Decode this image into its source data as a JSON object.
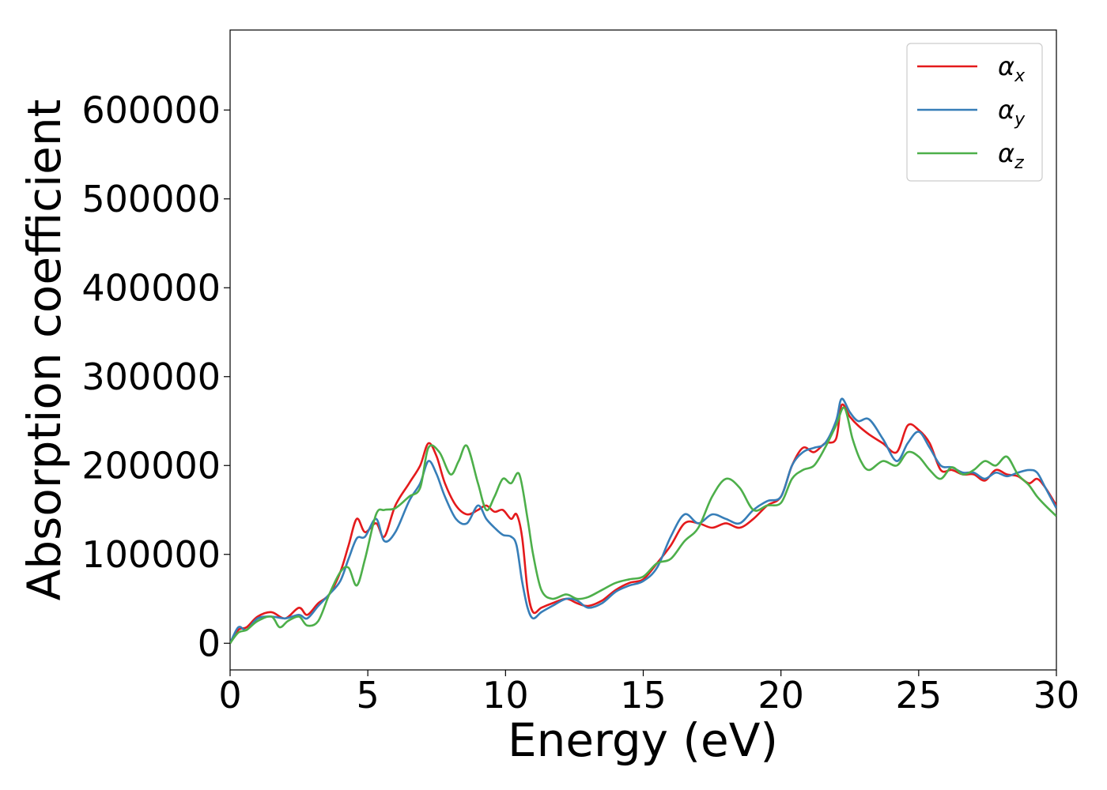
{
  "chart_data": {
    "type": "line",
    "xlabel": "Energy (eV)",
    "ylabel": "Absorption coefficient",
    "xlim": [
      0,
      30
    ],
    "ylim": [
      -30000,
      690000
    ],
    "xticks": [
      0,
      5,
      10,
      15,
      20,
      25,
      30
    ],
    "xtick_labels": [
      "0",
      "5",
      "10",
      "15",
      "20",
      "25",
      "30"
    ],
    "yticks": [
      0,
      100000,
      200000,
      300000,
      400000,
      500000,
      600000
    ],
    "ytick_labels": [
      "0",
      "100000",
      "200000",
      "300000",
      "400000",
      "500000",
      "600000"
    ],
    "grid": false,
    "legend_position": "upper-right",
    "series": [
      {
        "name": "αx",
        "legend_base": "α",
        "legend_sub": "x",
        "color": "#e41a1c",
        "x": [
          0,
          0.3,
          0.6,
          1.0,
          1.5,
          2.0,
          2.5,
          2.8,
          3.2,
          3.6,
          4.0,
          4.3,
          4.6,
          4.9,
          5.3,
          5.6,
          6.0,
          6.5,
          6.9,
          7.2,
          7.5,
          7.8,
          8.2,
          8.6,
          9.0,
          9.3,
          9.6,
          9.9,
          10.2,
          10.4,
          10.6,
          10.8,
          11.0,
          11.3,
          11.7,
          12.2,
          12.6,
          13.0,
          13.5,
          14.0,
          14.5,
          15.0,
          15.5,
          16.0,
          16.5,
          17.0,
          17.5,
          18.0,
          18.5,
          19.0,
          19.5,
          20.0,
          20.4,
          20.8,
          21.2,
          21.6,
          22.0,
          22.2,
          22.5,
          22.8,
          23.2,
          23.7,
          24.2,
          24.6,
          25.0,
          25.4,
          25.8,
          26.2,
          26.6,
          27.0,
          27.4,
          27.8,
          28.2,
          28.6,
          29.0,
          29.3,
          29.6,
          30.0
        ],
        "y": [
          0,
          15000,
          18000,
          30000,
          35000,
          28000,
          40000,
          32000,
          45000,
          55000,
          80000,
          110000,
          140000,
          125000,
          135000,
          120000,
          155000,
          180000,
          200000,
          225000,
          210000,
          180000,
          155000,
          145000,
          150000,
          155000,
          148000,
          150000,
          140000,
          145000,
          120000,
          60000,
          35000,
          40000,
          45000,
          50000,
          45000,
          42000,
          48000,
          60000,
          68000,
          72000,
          90000,
          110000,
          135000,
          135000,
          130000,
          135000,
          130000,
          140000,
          155000,
          165000,
          200000,
          220000,
          215000,
          225000,
          230000,
          268000,
          255000,
          245000,
          235000,
          225000,
          215000,
          245000,
          240000,
          225000,
          195000,
          195000,
          190000,
          190000,
          183000,
          195000,
          190000,
          188000,
          180000,
          185000,
          175000,
          155000
        ]
      },
      {
        "name": "αy",
        "legend_base": "α",
        "legend_sub": "y",
        "color": "#377eb8",
        "x": [
          0,
          0.3,
          0.6,
          1.0,
          1.5,
          2.0,
          2.5,
          2.8,
          3.2,
          3.6,
          4.0,
          4.3,
          4.6,
          4.9,
          5.3,
          5.6,
          6.0,
          6.5,
          6.9,
          7.2,
          7.5,
          7.8,
          8.2,
          8.6,
          9.0,
          9.3,
          9.6,
          9.9,
          10.2,
          10.4,
          10.6,
          10.8,
          11.0,
          11.3,
          11.7,
          12.2,
          12.6,
          13.0,
          13.5,
          14.0,
          14.5,
          15.0,
          15.5,
          16.0,
          16.5,
          17.0,
          17.5,
          18.0,
          18.5,
          19.0,
          19.5,
          20.0,
          20.4,
          20.8,
          21.2,
          21.6,
          22.0,
          22.2,
          22.5,
          22.8,
          23.2,
          23.7,
          24.2,
          24.6,
          25.0,
          25.4,
          25.8,
          26.2,
          26.6,
          27.0,
          27.4,
          27.8,
          28.2,
          28.6,
          29.0,
          29.3,
          29.6,
          30.0
        ],
        "y": [
          0,
          18000,
          15000,
          28000,
          30000,
          28000,
          32000,
          28000,
          42000,
          55000,
          70000,
          95000,
          118000,
          120000,
          140000,
          115000,
          125000,
          160000,
          180000,
          205000,
          190000,
          165000,
          140000,
          135000,
          155000,
          140000,
          130000,
          122000,
          120000,
          110000,
          70000,
          40000,
          28000,
          35000,
          42000,
          50000,
          48000,
          40000,
          45000,
          58000,
          65000,
          70000,
          85000,
          120000,
          145000,
          135000,
          145000,
          140000,
          135000,
          150000,
          160000,
          165000,
          200000,
          215000,
          220000,
          225000,
          250000,
          275000,
          260000,
          250000,
          252000,
          230000,
          205000,
          225000,
          238000,
          220000,
          200000,
          198000,
          192000,
          192000,
          185000,
          192000,
          188000,
          192000,
          195000,
          192000,
          175000,
          152000
        ]
      },
      {
        "name": "αz",
        "legend_base": "α",
        "legend_sub": "z",
        "color": "#4daf4a",
        "x": [
          0,
          0.3,
          0.6,
          1.0,
          1.5,
          1.8,
          2.1,
          2.5,
          2.8,
          3.2,
          3.6,
          4.0,
          4.3,
          4.6,
          4.9,
          5.3,
          5.6,
          6.0,
          6.5,
          6.9,
          7.2,
          7.6,
          8.0,
          8.3,
          8.6,
          9.0,
          9.3,
          9.6,
          9.9,
          10.2,
          10.5,
          10.8,
          11.0,
          11.3,
          11.7,
          12.2,
          12.6,
          13.0,
          13.5,
          14.0,
          14.5,
          15.0,
          15.5,
          16.0,
          16.5,
          17.0,
          17.5,
          18.0,
          18.5,
          19.0,
          19.5,
          20.0,
          20.4,
          20.8,
          21.2,
          21.6,
          22.0,
          22.3,
          22.6,
          22.9,
          23.2,
          23.7,
          24.2,
          24.6,
          25.0,
          25.4,
          25.8,
          26.2,
          26.6,
          27.0,
          27.4,
          27.8,
          28.2,
          28.6,
          29.0,
          29.3,
          29.6,
          30.0
        ],
        "y": [
          0,
          12000,
          15000,
          25000,
          30000,
          18000,
          25000,
          30000,
          20000,
          25000,
          55000,
          80000,
          85000,
          65000,
          95000,
          145000,
          150000,
          152000,
          165000,
          175000,
          220000,
          215000,
          190000,
          205000,
          222000,
          180000,
          150000,
          165000,
          185000,
          180000,
          190000,
          140000,
          100000,
          60000,
          50000,
          55000,
          50000,
          52000,
          60000,
          68000,
          72000,
          75000,
          90000,
          95000,
          115000,
          130000,
          165000,
          185000,
          175000,
          150000,
          155000,
          158000,
          185000,
          195000,
          200000,
          220000,
          245000,
          265000,
          230000,
          205000,
          195000,
          205000,
          200000,
          215000,
          210000,
          195000,
          185000,
          198000,
          190000,
          195000,
          205000,
          200000,
          210000,
          190000,
          178000,
          165000,
          155000,
          143000
        ]
      }
    ]
  }
}
